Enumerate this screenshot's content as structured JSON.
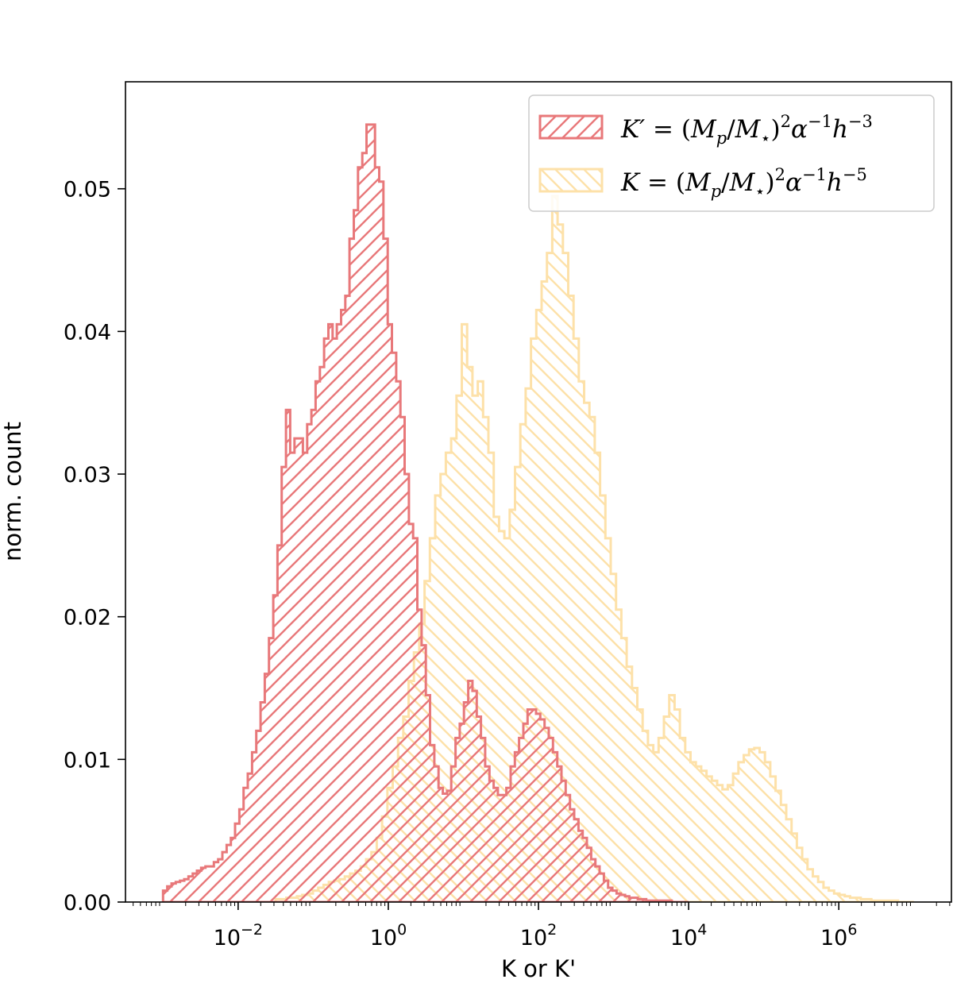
{
  "chart_data": {
    "type": "histogram",
    "xlabel": "K or K'",
    "ylabel": "norm. count",
    "x_scale": "log",
    "xlim": [
      0.000316,
      31600000.0
    ],
    "ylim": [
      0,
      0.0575
    ],
    "x_ticks": [
      {
        "value": 0.01,
        "mantissa": "10",
        "exponent": "−2"
      },
      {
        "value": 1,
        "mantissa": "10",
        "exponent": "0"
      },
      {
        "value": 100,
        "mantissa": "10",
        "exponent": "2"
      },
      {
        "value": 10000,
        "mantissa": "10",
        "exponent": "4"
      },
      {
        "value": 1000000,
        "mantissa": "10",
        "exponent": "6"
      }
    ],
    "y_ticks": [
      "0.00",
      "0.01",
      "0.02",
      "0.03",
      "0.04",
      "0.05"
    ],
    "y_tick_values": [
      0,
      0.01,
      0.02,
      0.03,
      0.04,
      0.05
    ],
    "legend_position": "top-right",
    "series": [
      {
        "name": "K′ = (M_p/M_⋆)^2 α^−1 h^−3",
        "legend": {
          "lhs": "K′",
          "mp": "M",
          "mp_sub": "p",
          "ms": "M",
          "ms_sub": "⋆",
          "alpha_exp": "−1",
          "h_exp": "−3"
        },
        "color": "#e8787a",
        "hatch": "////",
        "bin_edges_log10": [
          -3,
          2.6,
          -1.5,
          0.4,
          1.5,
          2.4,
          4
        ],
        "values": [
          0.0008,
          0.0011,
          0.0013,
          0.0014,
          0.0015,
          0.0016,
          0.0018,
          0.002,
          0.0022,
          0.0024,
          0.0025,
          0.0025,
          0.0028,
          0.003,
          0.0035,
          0.004,
          0.0045,
          0.0055,
          0.0065,
          0.008,
          0.009,
          0.0105,
          0.012,
          0.014,
          0.016,
          0.0185,
          0.0215,
          0.025,
          0.0305,
          0.0345,
          0.0315,
          0.0325,
          0.0325,
          0.0315,
          0.0335,
          0.0345,
          0.0365,
          0.0375,
          0.0395,
          0.0405,
          0.0395,
          0.0405,
          0.0415,
          0.0425,
          0.0465,
          0.0485,
          0.0515,
          0.0525,
          0.0545,
          0.0545,
          0.0515,
          0.0505,
          0.0465,
          0.0405,
          0.0385,
          0.0365,
          0.034,
          0.03,
          0.0265,
          0.0255,
          0.0205,
          0.018,
          0.0145,
          0.011,
          0.0095,
          0.008,
          0.0076,
          0.0078,
          0.0095,
          0.0115,
          0.0125,
          0.014,
          0.0155,
          0.0148,
          0.013,
          0.0115,
          0.0095,
          0.0085,
          0.008,
          0.0075,
          0.0075,
          0.008,
          0.0095,
          0.0105,
          0.0115,
          0.0125,
          0.0135,
          0.0135,
          0.0132,
          0.0128,
          0.0122,
          0.0115,
          0.0105,
          0.0095,
          0.0085,
          0.0075,
          0.0065,
          0.0058,
          0.005,
          0.0045,
          0.0038,
          0.003,
          0.0025,
          0.002,
          0.0015,
          0.001,
          0.0008,
          0.0006,
          0.0005,
          0.0004,
          0.0003,
          0.0003,
          0.0002,
          0.0002,
          0.0001,
          0.0001,
          0.0001,
          0.0001,
          0.0001,
          0.0001,
          0,
          0,
          0,
          0
        ]
      },
      {
        "name": "K = (M_p/M_⋆)^2 α^−1 h^−5",
        "legend": {
          "lhs": "K",
          "mp": "M",
          "mp_sub": "p",
          "ms": "M",
          "ms_sub": "⋆",
          "alpha_exp": "−1",
          "h_exp": "−5"
        },
        "color": "#fde1a9",
        "hatch": "\\\\\\\\",
        "bin_edges_log10": [
          -1.5,
          7
        ],
        "values": [
          0.0002,
          0.0002,
          0.0003,
          0.0003,
          0.0004,
          0.0005,
          0.0006,
          0.0008,
          0.001,
          0.0012,
          0.0014,
          0.0015,
          0.0016,
          0.0018,
          0.002,
          0.0022,
          0.0025,
          0.003,
          0.0035,
          0.0045,
          0.006,
          0.008,
          0.0095,
          0.0115,
          0.013,
          0.0155,
          0.0175,
          0.0195,
          0.0225,
          0.0255,
          0.0285,
          0.03,
          0.0315,
          0.0325,
          0.0355,
          0.0405,
          0.0375,
          0.0355,
          0.0365,
          0.034,
          0.0315,
          0.027,
          0.026,
          0.0255,
          0.0275,
          0.0305,
          0.0335,
          0.036,
          0.0395,
          0.0415,
          0.0435,
          0.0455,
          0.0495,
          0.0475,
          0.0455,
          0.0425,
          0.0395,
          0.0365,
          0.035,
          0.034,
          0.0315,
          0.0285,
          0.0255,
          0.023,
          0.0205,
          0.0185,
          0.0165,
          0.015,
          0.0135,
          0.012,
          0.011,
          0.0105,
          0.0115,
          0.013,
          0.0145,
          0.0135,
          0.0115,
          0.0105,
          0.0098,
          0.0095,
          0.0092,
          0.0088,
          0.0085,
          0.0082,
          0.0079,
          0.0082,
          0.009,
          0.0098,
          0.0103,
          0.0107,
          0.0108,
          0.0105,
          0.0098,
          0.0088,
          0.0078,
          0.0068,
          0.0058,
          0.0048,
          0.0038,
          0.003,
          0.0023,
          0.0018,
          0.0014,
          0.001,
          0.0008,
          0.0006,
          0.0005,
          0.0004,
          0.0003,
          0.0003,
          0.0002,
          0.0002,
          0.0001,
          0.0001,
          0.0001,
          0.0001,
          0.0001,
          0,
          0,
          0
        ]
      }
    ]
  }
}
